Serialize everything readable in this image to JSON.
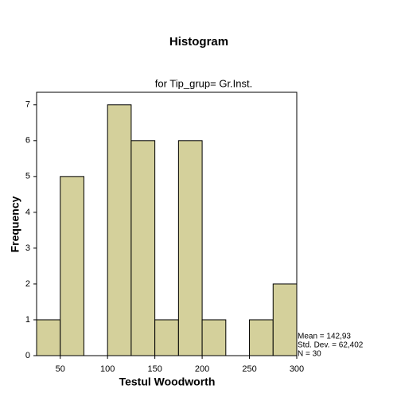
{
  "chart_data": {
    "type": "histogram",
    "title": "Histogram",
    "subtitle": "for Tip_grup= Gr.Inst.",
    "x_label": "Testul Woodworth",
    "y_label": "Frequency",
    "bins": [
      25,
      50,
      75,
      100,
      125,
      150,
      175,
      200,
      225,
      250,
      275,
      300
    ],
    "counts": [
      1,
      5,
      0,
      7,
      6,
      1,
      6,
      1,
      0,
      1,
      2
    ],
    "color": "#d4d09b",
    "xlim": [
      25,
      300
    ],
    "xticks": [
      50,
      100,
      150,
      200,
      250,
      300
    ],
    "ylim": [
      0,
      7.35
    ],
    "yticks": [
      0,
      1,
      2,
      3,
      4,
      5,
      6,
      7
    ],
    "annotations": [
      "Mean = 142,93",
      "Std. Dev. = 62,402",
      "N = 30"
    ]
  }
}
